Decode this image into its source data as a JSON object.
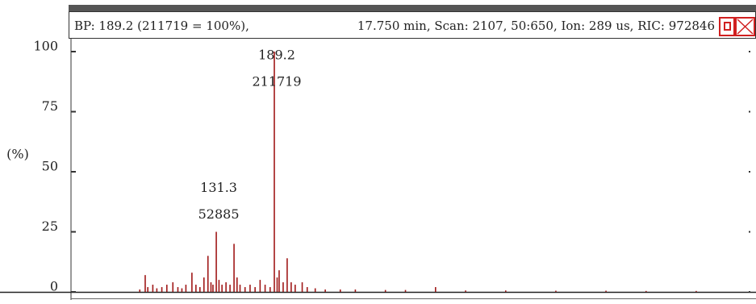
{
  "chart_data": {
    "type": "bar",
    "title": "BP: 189.2 (211719 = 100%),",
    "subtitle": "17.750 min, Scan: 2107, 50:650, Ion: 289 us, RIC: 972846",
    "ylabel": "(%)",
    "color": "#a01818",
    "x": [
      55,
      60.4,
      63,
      68,
      72,
      77,
      82,
      88,
      93,
      97,
      101,
      107,
      111,
      115,
      119,
      123,
      126,
      128,
      131.3,
      134,
      137,
      141,
      145,
      149,
      152,
      155,
      160,
      165,
      170,
      175,
      180,
      185,
      189.2,
      192,
      194,
      198,
      202,
      206,
      210,
      217,
      222,
      230,
      240,
      255,
      270,
      300,
      320,
      350,
      380,
      420,
      470,
      520,
      560,
      610
    ],
    "values": [
      1,
      7,
      2,
      3,
      1.5,
      2,
      3,
      4,
      2,
      1.5,
      3,
      8,
      3,
      2,
      6,
      15,
      4,
      3,
      25,
      5,
      3,
      4,
      3,
      20,
      6,
      3,
      2,
      3,
      2,
      5,
      3,
      2,
      100,
      6,
      9,
      4,
      14,
      4,
      3,
      4,
      2,
      1.5,
      1,
      1,
      1,
      0.8,
      0.8,
      2,
      0.6,
      0.6,
      0.5,
      0.5,
      0.4,
      0.4
    ],
    "annotations": [
      {
        "mz": "189.2",
        "count": "211719"
      },
      {
        "mz": "131.3",
        "count": "52885"
      }
    ],
    "xlim": [
      -12,
      664
    ],
    "ylim": [
      0,
      100
    ],
    "yticks": [
      0,
      25,
      50,
      75,
      100
    ]
  }
}
